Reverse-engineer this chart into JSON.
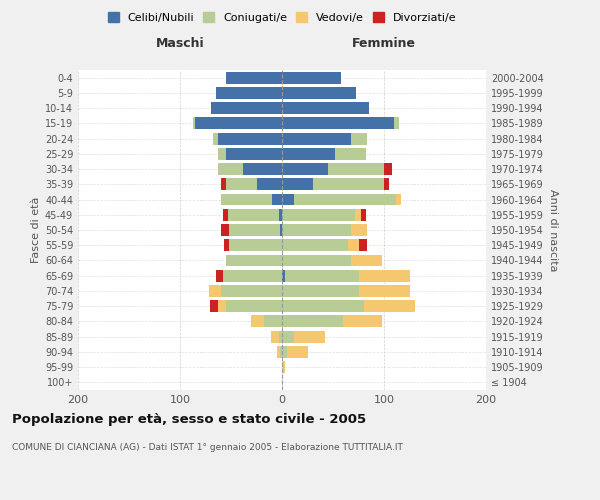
{
  "age_groups": [
    "100+",
    "95-99",
    "90-94",
    "85-89",
    "80-84",
    "75-79",
    "70-74",
    "65-69",
    "60-64",
    "55-59",
    "50-54",
    "45-49",
    "40-44",
    "35-39",
    "30-34",
    "25-29",
    "20-24",
    "15-19",
    "10-14",
    "5-9",
    "0-4"
  ],
  "birth_years": [
    "≤ 1904",
    "1905-1909",
    "1910-1914",
    "1915-1919",
    "1920-1924",
    "1925-1929",
    "1930-1934",
    "1935-1939",
    "1940-1944",
    "1945-1949",
    "1950-1954",
    "1955-1959",
    "1960-1964",
    "1965-1969",
    "1970-1974",
    "1975-1979",
    "1980-1984",
    "1985-1989",
    "1990-1994",
    "1995-1999",
    "2000-2004"
  ],
  "male": {
    "celibe": [
      0,
      0,
      0,
      0,
      0,
      0,
      0,
      0,
      0,
      0,
      2,
      3,
      10,
      25,
      38,
      55,
      63,
      85,
      70,
      65,
      55
    ],
    "coniugato": [
      0,
      0,
      2,
      3,
      18,
      55,
      60,
      58,
      55,
      52,
      50,
      50,
      50,
      30,
      25,
      8,
      5,
      2,
      0,
      0,
      0
    ],
    "vedovo": [
      0,
      0,
      3,
      8,
      12,
      8,
      12,
      0,
      0,
      0,
      0,
      0,
      0,
      0,
      0,
      0,
      0,
      0,
      0,
      0,
      0
    ],
    "divorziato": [
      0,
      0,
      0,
      0,
      0,
      8,
      0,
      7,
      0,
      5,
      8,
      5,
      0,
      5,
      0,
      0,
      0,
      0,
      0,
      0,
      0
    ]
  },
  "female": {
    "nubile": [
      0,
      0,
      0,
      0,
      0,
      0,
      0,
      3,
      0,
      0,
      0,
      0,
      12,
      30,
      45,
      52,
      68,
      110,
      85,
      73,
      58
    ],
    "coniugata": [
      0,
      0,
      5,
      12,
      60,
      80,
      75,
      72,
      68,
      65,
      68,
      72,
      100,
      70,
      55,
      30,
      15,
      5,
      0,
      0,
      0
    ],
    "vedova": [
      0,
      3,
      20,
      30,
      38,
      50,
      50,
      50,
      30,
      10,
      15,
      5,
      5,
      0,
      0,
      0,
      0,
      0,
      0,
      0,
      0
    ],
    "divorziata": [
      0,
      0,
      0,
      0,
      0,
      0,
      0,
      0,
      0,
      8,
      0,
      5,
      0,
      5,
      8,
      0,
      0,
      0,
      0,
      0,
      0
    ]
  },
  "colors": {
    "celibe": "#4472a8",
    "coniugato": "#b8cc96",
    "vedovo": "#f5c76e",
    "divorziato": "#cc2222"
  },
  "legend_labels": [
    "Celibi/Nubili",
    "Coniugati/e",
    "Vedovi/e",
    "Divorziati/e"
  ],
  "legend_colors": [
    "#4472a8",
    "#b8cc96",
    "#f5c76e",
    "#cc2222"
  ],
  "title": "Popolazione per età, sesso e stato civile - 2005",
  "subtitle": "COMUNE DI CIANCIANA (AG) - Dati ISTAT 1° gennaio 2005 - Elaborazione TUTTITALIA.IT",
  "ylabel_left": "Fasce di età",
  "ylabel_right": "Anni di nascita",
  "xlabel_left": "Maschi",
  "xlabel_right": "Femmine",
  "xlim": 200,
  "bg_color": "#f0f0f0",
  "plot_bg": "#ffffff",
  "grid_color": "#cccccc"
}
